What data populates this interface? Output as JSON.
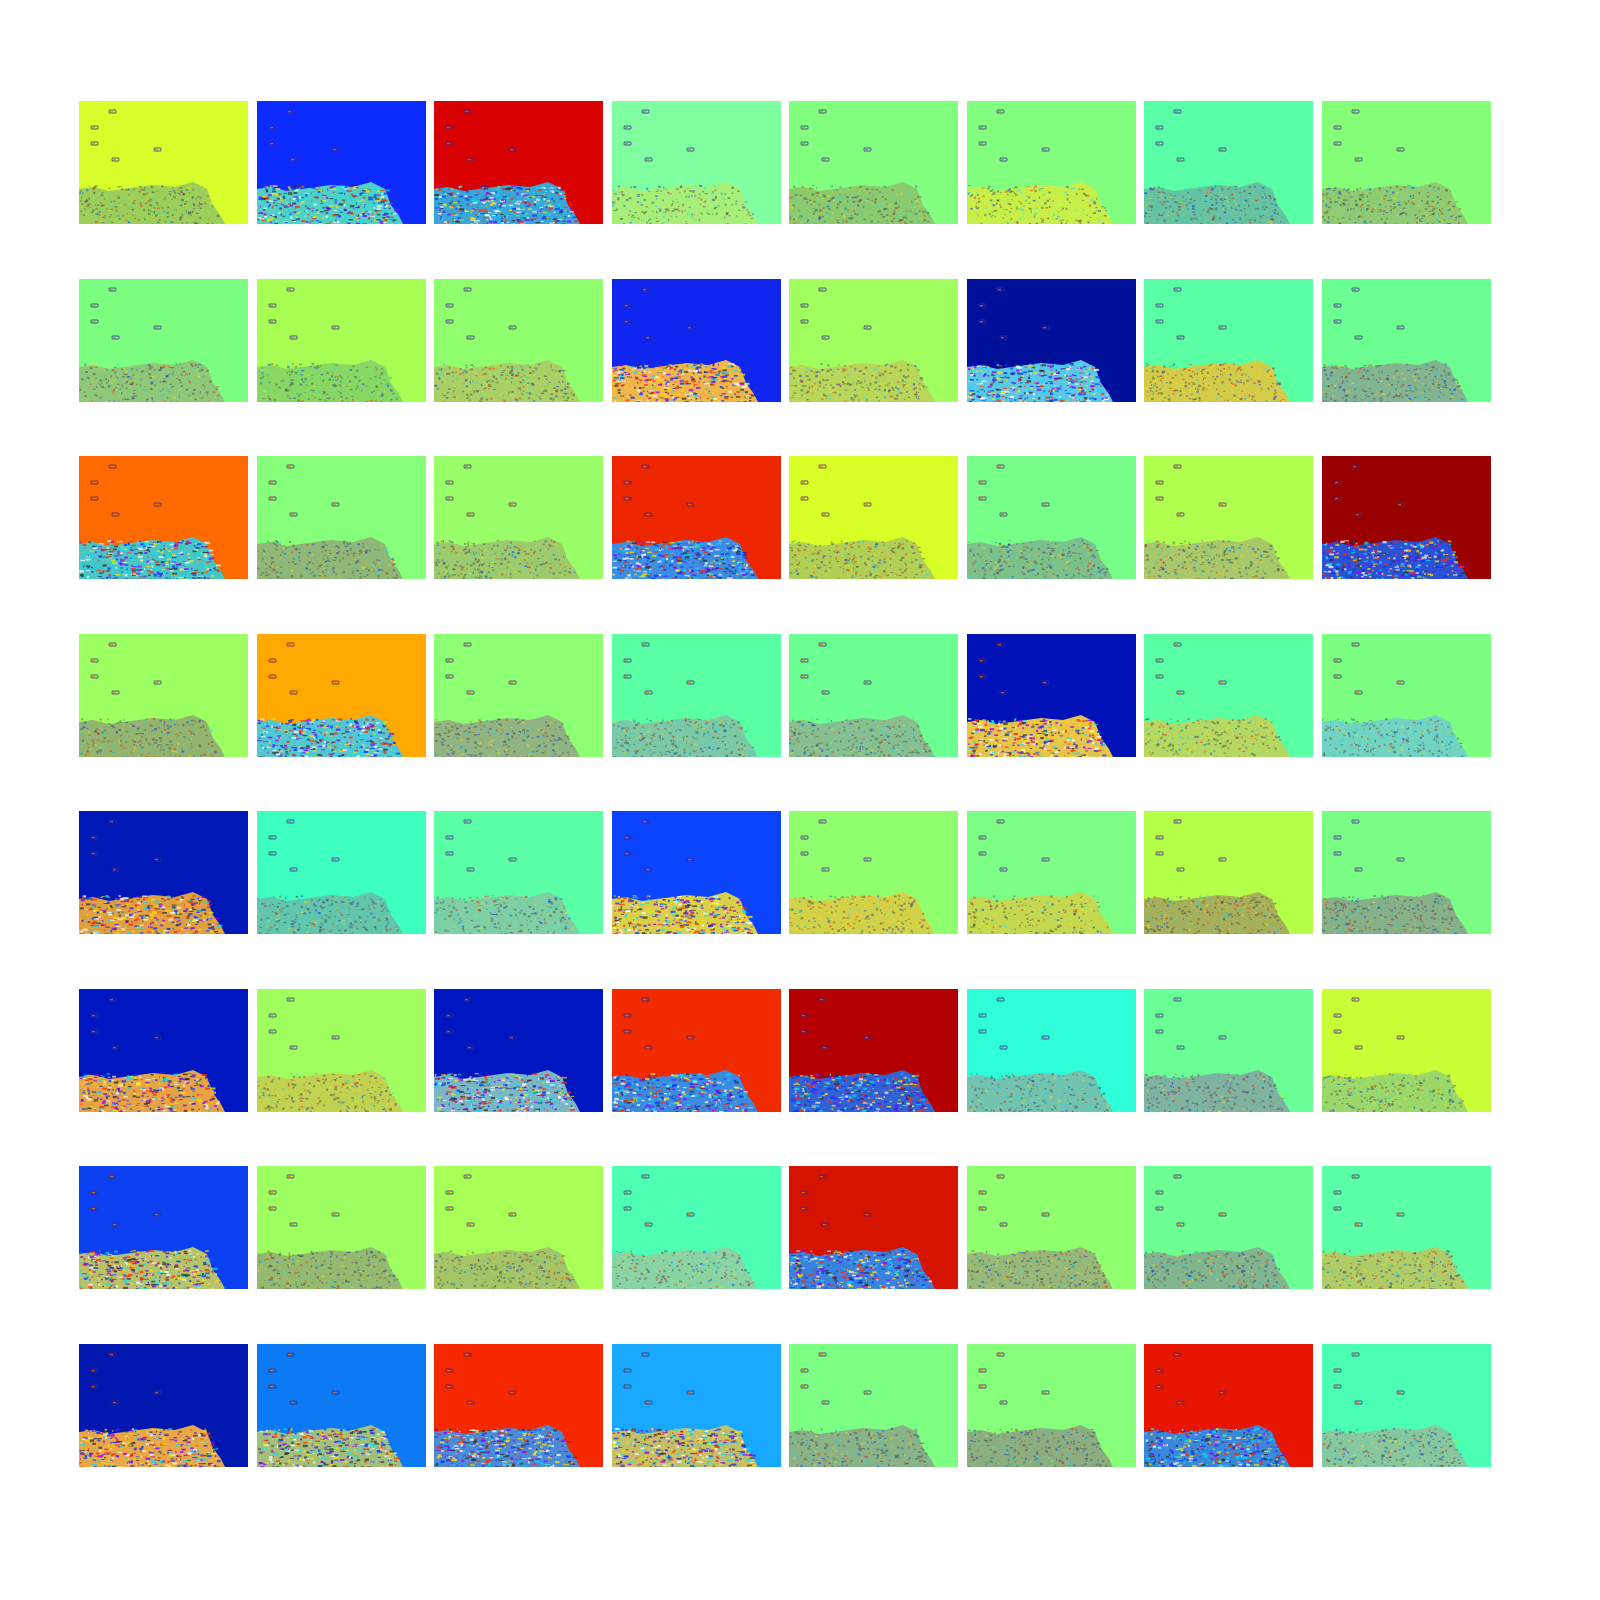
{
  "figure": {
    "rows": 8,
    "cols": 8,
    "colormap": "jet",
    "maps": [
      {
        "bg": "#d6ff2b",
        "land": "#9ccf5a",
        "texture": "speckle"
      },
      {
        "bg": "#0c2cff",
        "land": "#4fd2c6",
        "texture": "strong"
      },
      {
        "bg": "#d80000",
        "land": "#3aa6d6",
        "texture": "strong"
      },
      {
        "bg": "#7fffa0",
        "land": "#a6f07a",
        "texture": "fine"
      },
      {
        "bg": "#82ff7e",
        "land": "#8acb6f",
        "texture": "speckle"
      },
      {
        "bg": "#82ff7e",
        "land": "#c6ef4a",
        "texture": "fine"
      },
      {
        "bg": "#58ffa6",
        "land": "#66c3a2",
        "texture": "speckle"
      },
      {
        "bg": "#86ff78",
        "land": "#8fcb73",
        "texture": "speckle"
      },
      {
        "bg": "#7cff80",
        "land": "#8ec879",
        "texture": "speckle"
      },
      {
        "bg": "#a8ff54",
        "land": "#86d864",
        "texture": "fine"
      },
      {
        "bg": "#90ff6e",
        "land": "#a8d064",
        "texture": "speckle"
      },
      {
        "bg": "#0e26ee",
        "land": "#f0b64a",
        "texture": "strong"
      },
      {
        "bg": "#a0ff5e",
        "land": "#b8d65a",
        "texture": "speckle"
      },
      {
        "bg": "#00109a",
        "land": "#5bc8e6",
        "texture": "strong"
      },
      {
        "bg": "#5affa4",
        "land": "#d2cc48",
        "texture": "speckle"
      },
      {
        "bg": "#6bff92",
        "land": "#82b492",
        "texture": "speckle"
      },
      {
        "bg": "#ff6a00",
        "land": "#46c6c6",
        "texture": "strong"
      },
      {
        "bg": "#86ff7a",
        "land": "#8fb778",
        "texture": "speckle"
      },
      {
        "bg": "#98ff68",
        "land": "#9ccb6e",
        "texture": "speckle"
      },
      {
        "bg": "#ee2600",
        "land": "#3a8ee6",
        "texture": "strong"
      },
      {
        "bg": "#d8ff26",
        "land": "#b2cf55",
        "texture": "speckle"
      },
      {
        "bg": "#76ff88",
        "land": "#7ec08a",
        "texture": "speckle"
      },
      {
        "bg": "#b0ff4e",
        "land": "#a8c86a",
        "texture": "speckle"
      },
      {
        "bg": "#9a0000",
        "land": "#2a52d6",
        "texture": "strong"
      },
      {
        "bg": "#9cff62",
        "land": "#93b46f",
        "texture": "speckle"
      },
      {
        "bg": "#ffa800",
        "land": "#52c8d2",
        "texture": "strong"
      },
      {
        "bg": "#8cff72",
        "land": "#91b582",
        "texture": "speckle"
      },
      {
        "bg": "#5affa4",
        "land": "#7cc9a5",
        "texture": "speckle"
      },
      {
        "bg": "#6cff92",
        "land": "#86c090",
        "texture": "speckle"
      },
      {
        "bg": "#0012b8",
        "land": "#e8c448",
        "texture": "strong"
      },
      {
        "bg": "#5affa4",
        "land": "#b4d862",
        "texture": "fine"
      },
      {
        "bg": "#7cff80",
        "land": "#70d4c0",
        "texture": "fine"
      },
      {
        "bg": "#0018b8",
        "land": "#e0a040",
        "texture": "strong"
      },
      {
        "bg": "#3cffc0",
        "land": "#62c6ac",
        "texture": "speckle"
      },
      {
        "bg": "#5affa6",
        "land": "#7ed0a4",
        "texture": "fine"
      },
      {
        "bg": "#0a44ff",
        "land": "#d8d048",
        "texture": "strong"
      },
      {
        "bg": "#90ff6e",
        "land": "#d2d248",
        "texture": "fine"
      },
      {
        "bg": "#7cff84",
        "land": "#c4d850",
        "texture": "fine"
      },
      {
        "bg": "#b4ff48",
        "land": "#a6b05a",
        "texture": "speckle"
      },
      {
        "bg": "#7aff84",
        "land": "#86b088",
        "texture": "speckle"
      },
      {
        "bg": "#0016c0",
        "land": "#e6a444",
        "texture": "strong"
      },
      {
        "bg": "#a0ff5e",
        "land": "#c0d250",
        "texture": "fine"
      },
      {
        "bg": "#0016c0",
        "land": "#7ab6c4",
        "texture": "strong"
      },
      {
        "bg": "#f22a00",
        "land": "#3a8ae0",
        "texture": "strong"
      },
      {
        "bg": "#b40000",
        "land": "#3064d6",
        "texture": "strong"
      },
      {
        "bg": "#2effd8",
        "land": "#72c4b0",
        "texture": "fine"
      },
      {
        "bg": "#6aff94",
        "land": "#80b2a0",
        "texture": "speckle"
      },
      {
        "bg": "#c8ff36",
        "land": "#9ad86a",
        "texture": "fine"
      },
      {
        "bg": "#0a40f0",
        "land": "#b8c268",
        "texture": "strong"
      },
      {
        "bg": "#9eff60",
        "land": "#94ba70",
        "texture": "speckle"
      },
      {
        "bg": "#a8ff56",
        "land": "#a4c468",
        "texture": "speckle"
      },
      {
        "bg": "#4cffb2",
        "land": "#8ad4a4",
        "texture": "fine"
      },
      {
        "bg": "#d61200",
        "land": "#3a82e0",
        "texture": "strong"
      },
      {
        "bg": "#90ff6e",
        "land": "#96b878",
        "texture": "speckle"
      },
      {
        "bg": "#6cff92",
        "land": "#82b48e",
        "texture": "speckle"
      },
      {
        "bg": "#5affa6",
        "land": "#b0cc66",
        "texture": "speckle"
      },
      {
        "bg": "#0018b0",
        "land": "#e8a848",
        "texture": "strong"
      },
      {
        "bg": "#0c7af4",
        "land": "#a2c07c",
        "texture": "strong"
      },
      {
        "bg": "#f62800",
        "land": "#4a8ad6",
        "texture": "strong"
      },
      {
        "bg": "#18a8ff",
        "land": "#c4c068",
        "texture": "strong"
      },
      {
        "bg": "#7cff82",
        "land": "#88b288",
        "texture": "speckle"
      },
      {
        "bg": "#86ff7a",
        "land": "#8aae80",
        "texture": "speckle"
      },
      {
        "bg": "#e81600",
        "land": "#3a88da",
        "texture": "strong"
      },
      {
        "bg": "#4affb4",
        "land": "#86c8a0",
        "texture": "speckle"
      }
    ]
  }
}
